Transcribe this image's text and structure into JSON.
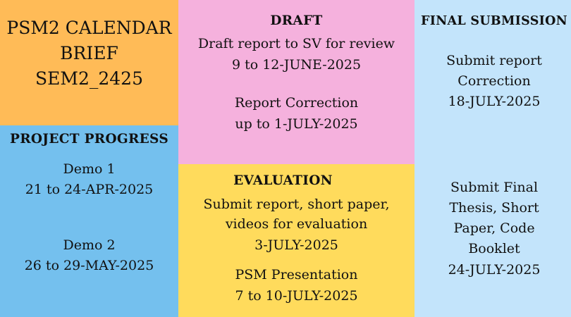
{
  "title_block": {
    "lines": [
      "PSM2 CALENDAR",
      "BRIEF",
      "SEM2_2425"
    ],
    "color": "#ffbb57"
  },
  "project_progress": {
    "heading": "PROJECT PROGRESS",
    "color": "#74c0ee",
    "items": [
      {
        "label": "Demo  1",
        "date": "21 to 24-APR-2025"
      },
      {
        "label": "Demo 2",
        "date": "26 to 29-MAY-2025"
      }
    ]
  },
  "draft": {
    "heading": "DRAFT",
    "color": "#f5b1dd",
    "items": [
      {
        "label": "Draft report to SV for review",
        "date": "9 to 12-JUNE-2025"
      },
      {
        "label": "Report Correction",
        "date": "up to 1-JULY-2025"
      }
    ]
  },
  "evaluation": {
    "heading": "EVALUATION",
    "color": "#ffdb5c",
    "items": [
      {
        "lines": [
          "Submit report, short paper,",
          "videos for evaluation"
        ],
        "date": "3-JULY-2025"
      },
      {
        "label": "PSM Presentation",
        "date": "7 to 10-JULY-2025"
      }
    ]
  },
  "final_submission": {
    "heading": "FINAL SUBMISSION",
    "color": "#c3e4fb",
    "items": [
      {
        "lines": [
          "Submit report",
          "Correction"
        ],
        "date": "18-JULY-2025"
      },
      {
        "lines": [
          "Submit Final",
          "Thesis, Short",
          "Paper, Code",
          "Booklet"
        ],
        "date": "24-JULY-2025"
      }
    ]
  }
}
